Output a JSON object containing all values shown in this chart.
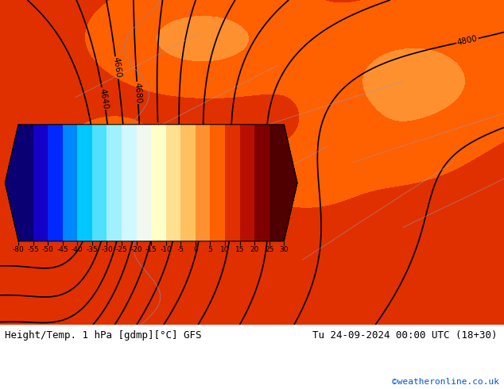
{
  "title_left": "Height/Temp. 1 hPa [gdmp][°C] GFS",
  "title_right": "Tu 24-09-2024 00:00 UTC (18+30)",
  "credit": "©weatheronline.co.uk",
  "colorbar_levels": [
    -80,
    -55,
    -50,
    -45,
    -40,
    -35,
    -30,
    -25,
    -20,
    -15,
    -10,
    -5,
    0,
    5,
    10,
    15,
    20,
    25,
    30
  ],
  "colorbar_colors": [
    "#0a0073",
    "#1500c8",
    "#0028ff",
    "#0087ff",
    "#00c8ff",
    "#50e0ff",
    "#a0f0ff",
    "#d0f8ff",
    "#f0f8f0",
    "#ffffc8",
    "#ffe090",
    "#ffc060",
    "#ff9030",
    "#ff6000",
    "#e03000",
    "#b81000",
    "#800000",
    "#500000"
  ],
  "background_color": "#ffffff",
  "contour_color": "#000000",
  "contour_linewidth": 1.2,
  "fig_width": 6.34,
  "fig_height": 4.9,
  "dpi": 100
}
